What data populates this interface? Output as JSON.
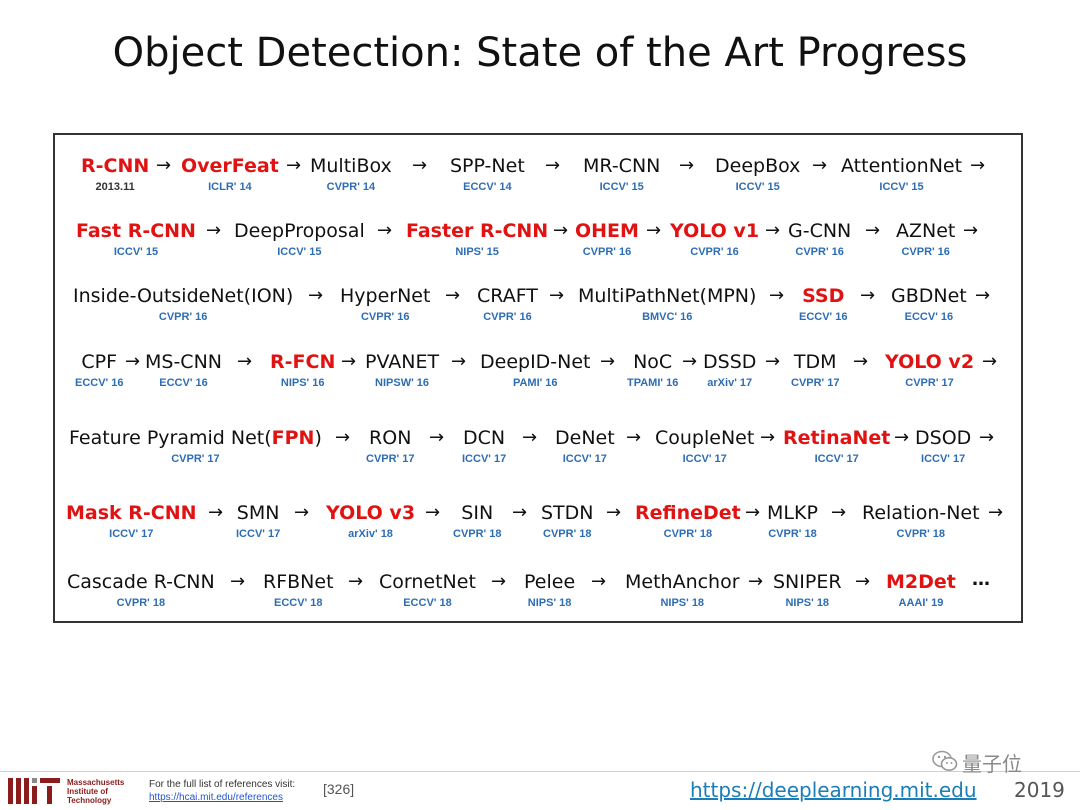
{
  "title": "Object Detection: State of the Art Progress",
  "rows": [
    [
      {
        "name": "R-CNN",
        "venue": "2013.11",
        "red": true,
        "venue_black": true
      },
      {
        "name": "OverFeat",
        "venue": "ICLR' 14",
        "red": true
      },
      {
        "name": "MultiBox",
        "venue": "CVPR' 14"
      },
      {
        "name": "SPP-Net",
        "venue": "ECCV' 14"
      },
      {
        "name": "MR-CNN",
        "venue": "ICCV' 15"
      },
      {
        "name": "DeepBox",
        "venue": "ICCV' 15"
      },
      {
        "name": "AttentionNet",
        "venue": "ICCV' 15"
      }
    ],
    [
      {
        "name": "Fast R-CNN",
        "venue": "ICCV' 15",
        "red": true
      },
      {
        "name": "DeepProposal",
        "venue": "ICCV' 15"
      },
      {
        "name": "Faster R-CNN",
        "venue": "NIPS' 15",
        "red": true
      },
      {
        "name": "OHEM",
        "venue": "CVPR' 16",
        "red": true
      },
      {
        "name": "YOLO v1",
        "venue": "CVPR' 16",
        "red": true
      },
      {
        "name": "G-CNN",
        "venue": "CVPR' 16"
      },
      {
        "name": "AZNet",
        "venue": "CVPR' 16"
      }
    ],
    [
      {
        "name": "Inside-OutsideNet(ION)",
        "venue": "CVPR' 16"
      },
      {
        "name": "HyperNet",
        "venue": "CVPR' 16"
      },
      {
        "name": "CRAFT",
        "venue": "CVPR' 16"
      },
      {
        "name": "MultiPathNet(MPN)",
        "venue": "BMVC' 16"
      },
      {
        "name": "SSD",
        "venue": "ECCV' 16",
        "red": true
      },
      {
        "name": "GBDNet",
        "venue": "ECCV' 16"
      }
    ],
    [
      {
        "name": "CPF",
        "venue": "ECCV' 16"
      },
      {
        "name": "MS-CNN",
        "venue": "ECCV' 16"
      },
      {
        "name": "R-FCN",
        "venue": "NIPS' 16",
        "red": true
      },
      {
        "name": "PVANET",
        "venue": "NIPSW' 16"
      },
      {
        "name": "DeepID-Net",
        "venue": "PAMI' 16"
      },
      {
        "name": "NoC",
        "venue": "TPAMI' 16"
      },
      {
        "name": "DSSD",
        "venue": "arXiv' 17"
      },
      {
        "name": "TDM",
        "venue": "CVPR' 17"
      },
      {
        "name": "YOLO v2",
        "venue": "CVPR' 17",
        "red": true
      }
    ],
    [
      {
        "name_prefix": "Feature Pyramid Net(",
        "name_red": "FPN",
        "name_suffix": ")",
        "venue": "CVPR' 17"
      },
      {
        "name": "RON",
        "venue": "CVPR' 17"
      },
      {
        "name": "DCN",
        "venue": "ICCV' 17"
      },
      {
        "name": "DeNet",
        "venue": "ICCV' 17"
      },
      {
        "name": "CoupleNet",
        "venue": "ICCV' 17"
      },
      {
        "name": "RetinaNet",
        "venue": "ICCV' 17",
        "red": true
      },
      {
        "name": "DSOD",
        "venue": "ICCV' 17"
      }
    ],
    [
      {
        "name": "Mask R-CNN",
        "venue": "ICCV' 17",
        "red": true
      },
      {
        "name": "SMN",
        "venue": "ICCV' 17"
      },
      {
        "name": "YOLO v3",
        "venue": "arXiv' 18",
        "red": true
      },
      {
        "name": "SIN",
        "venue": "CVPR' 18"
      },
      {
        "name": "STDN",
        "venue": "CVPR' 18"
      },
      {
        "name": "RefineDet",
        "venue": "CVPR' 18",
        "red": true
      },
      {
        "name": "MLKP",
        "venue": "CVPR' 18"
      },
      {
        "name": "Relation-Net",
        "venue": "CVPR' 18"
      }
    ],
    [
      {
        "name": "Cascade R-CNN",
        "venue": "CVPR' 18"
      },
      {
        "name": "RFBNet",
        "venue": "ECCV' 18"
      },
      {
        "name": "CornetNet",
        "venue": "ECCV' 18"
      },
      {
        "name": "Pelee",
        "venue": "NIPS' 18"
      },
      {
        "name": "MethAnchor",
        "venue": "NIPS' 18"
      },
      {
        "name": "SNIPER",
        "venue": "NIPS' 18"
      },
      {
        "name": "M2Det",
        "venue": "AAAI' 19",
        "red": true
      }
    ]
  ],
  "ellipsis": "…",
  "arrow": "→",
  "footer": {
    "mit_name": [
      "Massachusetts",
      "Institute of",
      "Technology"
    ],
    "ref_text": "For the full list of references visit:",
    "ref_link": "https://hcai.mit.edu/references",
    "ref_num": "[326]",
    "site": "https://deeplearning.mit.edu",
    "year": "2019",
    "watermark": "量子位"
  },
  "colors": {
    "red": "#e01212",
    "venue_blue": "#2d6db4",
    "mit_red": "#8a1c1c",
    "site_blue": "#1a7fb8"
  }
}
